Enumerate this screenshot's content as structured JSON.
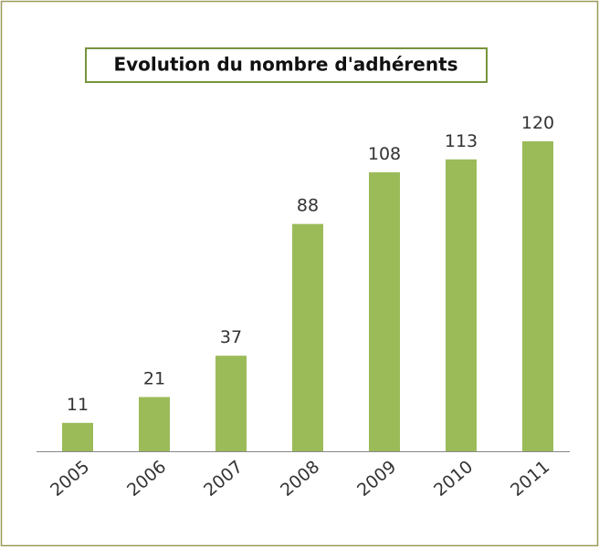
{
  "chart_data": {
    "type": "bar",
    "title": "Evolution du nombre d'adhérents",
    "categories": [
      "2005",
      "2006",
      "2007",
      "2008",
      "2009",
      "2010",
      "2011"
    ],
    "values": [
      11,
      21,
      37,
      88,
      108,
      113,
      120
    ],
    "color": "#9bbb59"
  }
}
